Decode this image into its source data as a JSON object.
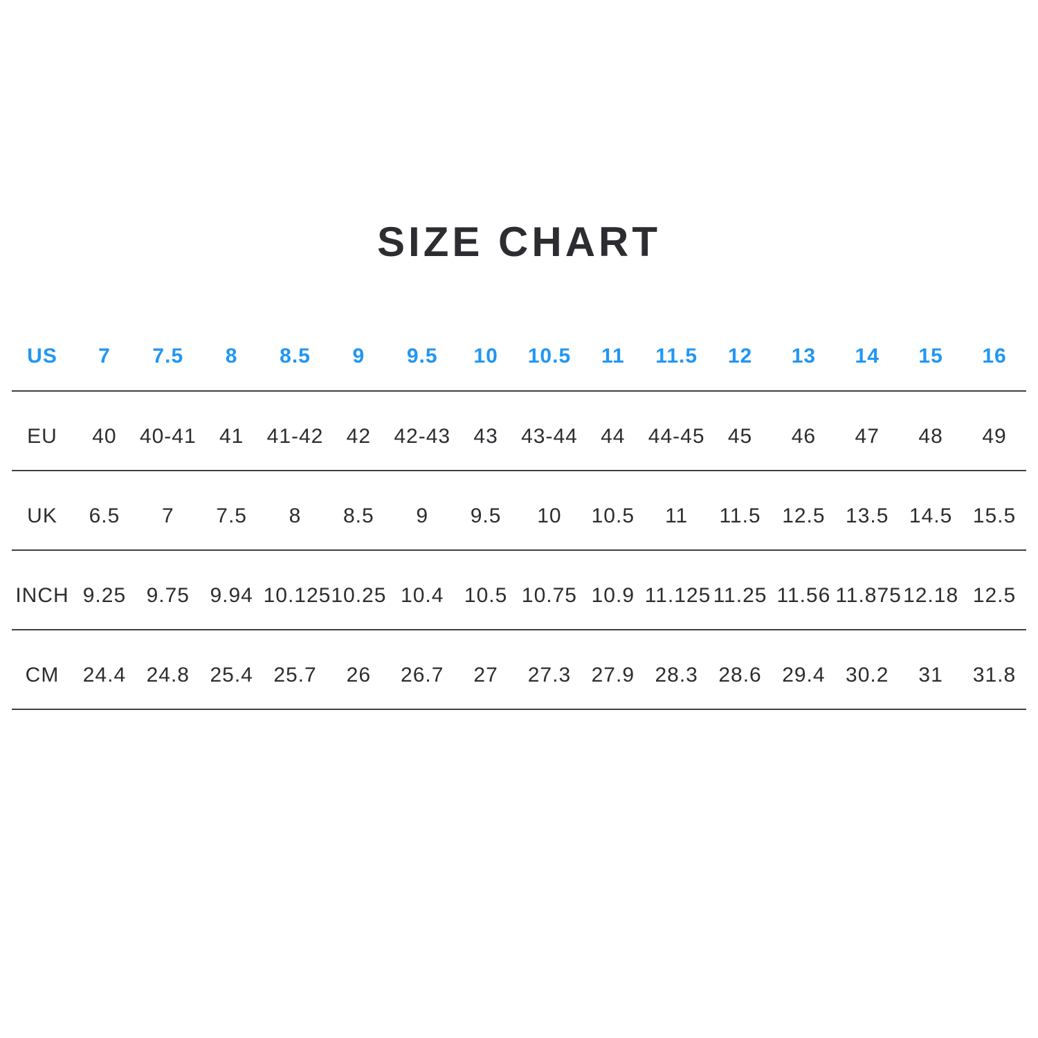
{
  "title": "SIZE CHART",
  "colors": {
    "accent_blue": "#2196f3",
    "text_dark": "#2c2c31",
    "divider_gray": "#3c3f44",
    "background": "#ffffff"
  },
  "chart_data": {
    "type": "table",
    "title": "SIZE CHART",
    "layout": {
      "row_dividers": true,
      "highlighted_row": "US",
      "columns_per_row": 16
    },
    "rows": [
      {
        "label": "US",
        "highlight": true,
        "values": [
          "7",
          "7.5",
          "8",
          "8.5",
          "9",
          "9.5",
          "10",
          "10.5",
          "11",
          "11.5",
          "12",
          "13",
          "14",
          "15",
          "16"
        ]
      },
      {
        "label": "EU",
        "highlight": false,
        "values": [
          "40",
          "40-41",
          "41",
          "41-42",
          "42",
          "42-43",
          "43",
          "43-44",
          "44",
          "44-45",
          "45",
          "46",
          "47",
          "48",
          "49"
        ]
      },
      {
        "label": "UK",
        "highlight": false,
        "values": [
          "6.5",
          "7",
          "7.5",
          "8",
          "8.5",
          "9",
          "9.5",
          "10",
          "10.5",
          "11",
          "11.5",
          "12.5",
          "13.5",
          "14.5",
          "15.5"
        ]
      },
      {
        "label": "INCH",
        "highlight": false,
        "values": [
          "9.25",
          "9.75",
          "9.94",
          "10.125",
          "10.25",
          "10.4",
          "10.5",
          "10.75",
          "10.9",
          "11.125",
          "11.25",
          "11.56",
          "11.875",
          "12.18",
          "12.5"
        ]
      },
      {
        "label": "CM",
        "highlight": false,
        "values": [
          "24.4",
          "24.8",
          "25.4",
          "25.7",
          "26",
          "26.7",
          "27",
          "27.3",
          "27.9",
          "28.3",
          "28.6",
          "29.4",
          "30.2",
          "31",
          "31.8"
        ]
      }
    ]
  }
}
